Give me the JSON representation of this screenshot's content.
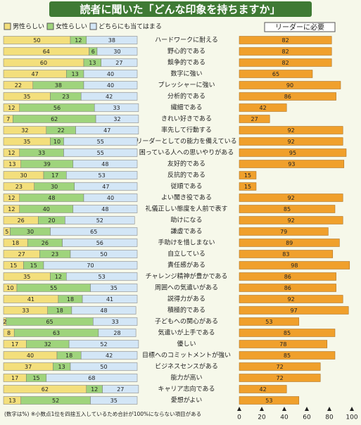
{
  "chart_data": [
    {
      "type": "stacked-bar",
      "title": "読者に聞いた「どんな印象を持ちますか」",
      "note": "(数字は%) ※小数点1位を四捨五入しているため合計が100%にならない項目がある",
      "categories": [
        "ハードワークに耐える",
        "野心的である",
        "競争的である",
        "数字に強い",
        "プレッシャーに強い",
        "分析的である",
        "繊細である",
        "きれい好きである",
        "率先して行動する",
        "リーダーとしての能力を備えている",
        "困っている人への思いやりがある",
        "友好的である",
        "反抗的である",
        "従順である",
        "よい聞き役である",
        "礼儀正しい態度を人前で表す",
        "助けになる",
        "謙虚である",
        "手助けを惜しまない",
        "自立している",
        "責任感がある",
        "チャレンジ精神が豊かである",
        "周囲への気遣いがある",
        "説得力がある",
        "積極的である",
        "子どもへの関心がある",
        "気遣いが上手である",
        "優しい",
        "目標へのコミットメントが強い",
        "ビジネスセンスがある",
        "能力が高い",
        "キャリア志向である",
        "愛想がよい"
      ],
      "series": [
        {
          "name": "男性らしい",
          "color": "#f3df7c",
          "values": [
            50,
            64,
            60,
            47,
            22,
            35,
            12,
            7,
            32,
            35,
            12,
            13,
            30,
            23,
            12,
            12,
            26,
            5,
            18,
            27,
            15,
            35,
            10,
            41,
            33,
            2,
            8,
            17,
            40,
            37,
            17,
            62,
            13
          ]
        },
        {
          "name": "女性らしい",
          "color": "#9fd47c",
          "values": [
            12,
            6,
            13,
            13,
            38,
            23,
            56,
            62,
            22,
            10,
            33,
            39,
            17,
            30,
            48,
            40,
            20,
            30,
            26,
            23,
            15,
            12,
            55,
            18,
            18,
            65,
            63,
            32,
            18,
            13,
            15,
            12,
            52
          ]
        },
        {
          "name": "どちらにも当てはまる",
          "color": "#d3e6f6",
          "values": [
            38,
            30,
            27,
            40,
            40,
            42,
            33,
            32,
            47,
            55,
            55,
            48,
            53,
            47,
            40,
            48,
            52,
            65,
            56,
            50,
            70,
            53,
            35,
            41,
            48,
            33,
            28,
            52,
            42,
            50,
            68,
            27,
            35
          ]
        }
      ]
    },
    {
      "type": "bar",
      "title": "リーダーに必要",
      "color": "#f0a02c",
      "values": [
        82,
        82,
        82,
        65,
        90,
        86,
        42,
        27,
        92,
        92,
        95,
        93,
        15,
        15,
        92,
        85,
        92,
        79,
        89,
        83,
        98,
        86,
        86,
        92,
        97,
        53,
        85,
        78,
        85,
        72,
        72,
        42,
        53
      ],
      "xlim": [
        0,
        100
      ],
      "xticks": [
        0,
        20,
        40,
        60,
        80,
        100
      ]
    }
  ]
}
